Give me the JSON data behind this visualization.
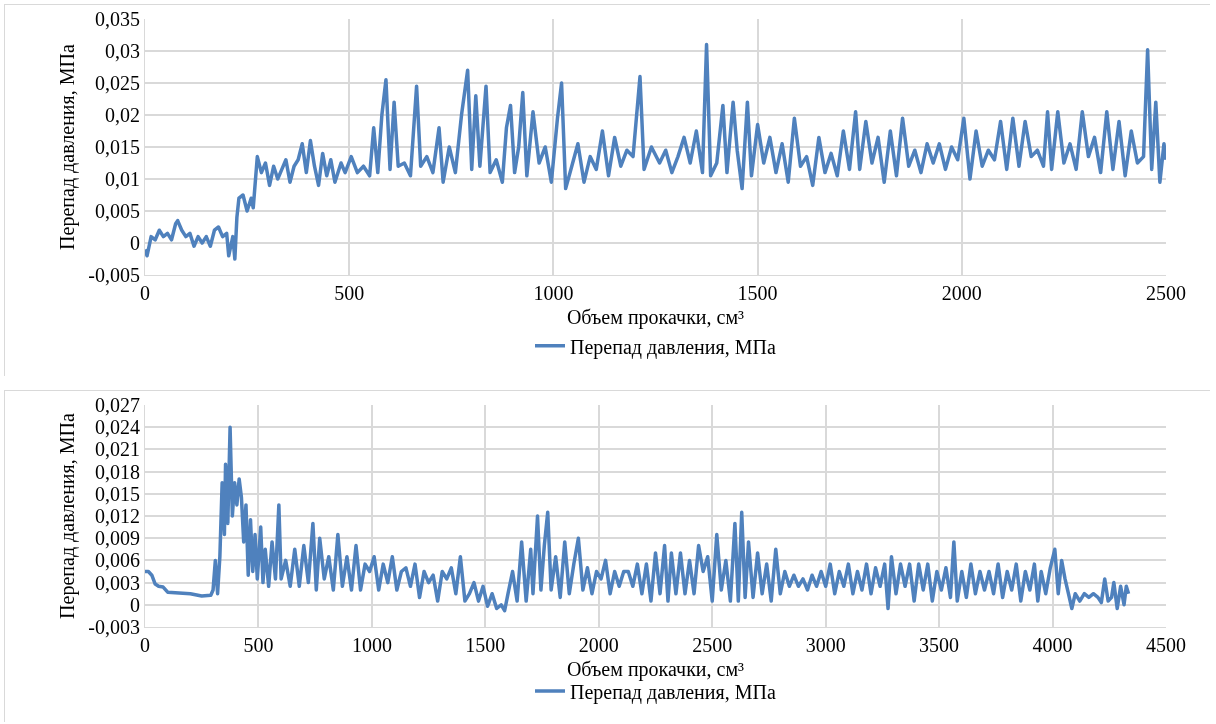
{
  "chart_data": [
    {
      "type": "line",
      "xlabel": "Объем прокачки, см³",
      "ylabel": "Перепад давления, МПа",
      "grid": true,
      "legend": "bottom",
      "marker": "none",
      "line_style": "solid",
      "xlim": [
        0,
        2500
      ],
      "xticks": [
        0,
        500,
        1000,
        1500,
        2000,
        2500
      ],
      "ylim": [
        -0.005,
        0.035
      ],
      "yticks": [
        {
          "value": -0.005,
          "label": "-0,005"
        },
        0,
        {
          "value": 0.005,
          "label": "0,005"
        },
        {
          "value": 0.01,
          "label": "0,01"
        },
        {
          "value": 0.015,
          "label": "0,015"
        },
        {
          "value": 0.02,
          "label": "0,02"
        },
        {
          "value": 0.025,
          "label": "0,025"
        },
        {
          "value": 0.03,
          "label": "0,03"
        },
        {
          "value": 0.035,
          "label": "0,035"
        }
      ],
      "series": [
        {
          "name": "Перепад давления, МПа",
          "color": "#4f81bd",
          "x": [
            0,
            5,
            15,
            25,
            35,
            45,
            55,
            65,
            75,
            80,
            90,
            100,
            110,
            120,
            130,
            140,
            150,
            160,
            170,
            180,
            190,
            200,
            205,
            215,
            220,
            225,
            230,
            240,
            250,
            260,
            265,
            275,
            285,
            295,
            305,
            315,
            325,
            335,
            345,
            355,
            365,
            375,
            385,
            395,
            405,
            415,
            425,
            435,
            445,
            455,
            465,
            480,
            490,
            505,
            520,
            535,
            550,
            560,
            570,
            580,
            590,
            600,
            610,
            620,
            635,
            650,
            665,
            675,
            690,
            705,
            720,
            730,
            745,
            760,
            775,
            790,
            800,
            810,
            820,
            835,
            845,
            860,
            875,
            885,
            895,
            905,
            915,
            925,
            935,
            950,
            965,
            980,
            995,
            1010,
            1020,
            1030,
            1045,
            1060,
            1075,
            1090,
            1105,
            1120,
            1135,
            1150,
            1165,
            1180,
            1195,
            1212,
            1222,
            1240,
            1260,
            1275,
            1290,
            1305,
            1320,
            1335,
            1350,
            1365,
            1375,
            1385,
            1400,
            1415,
            1425,
            1440,
            1450,
            1462,
            1475,
            1485,
            1500,
            1515,
            1530,
            1545,
            1560,
            1575,
            1590,
            1605,
            1620,
            1635,
            1650,
            1665,
            1680,
            1695,
            1710,
            1725,
            1740,
            1750,
            1765,
            1780,
            1795,
            1810,
            1825,
            1840,
            1855,
            1870,
            1885,
            1900,
            1915,
            1930,
            1945,
            1960,
            1975,
            1990,
            2005,
            2020,
            2035,
            2050,
            2065,
            2080,
            2095,
            2110,
            2125,
            2140,
            2155,
            2170,
            2185,
            2200,
            2210,
            2220,
            2235,
            2250,
            2265,
            2280,
            2295,
            2310,
            2325,
            2340,
            2355,
            2370,
            2385,
            2400,
            2415,
            2430,
            2445,
            2455,
            2465,
            2475,
            2485,
            2495,
            2500
          ],
          "values": [
            -0.001,
            -0.002,
            0.001,
            0.0005,
            0.002,
            0.001,
            0.0015,
            0.0005,
            0.003,
            0.0035,
            0.002,
            0.001,
            0.0015,
            -0.0005,
            0.001,
            0,
            0.001,
            -0.0005,
            0.002,
            0.0025,
            0.001,
            0.0015,
            -0.002,
            0.001,
            -0.0025,
            0.004,
            0.007,
            0.0075,
            0.005,
            0.007,
            0.0055,
            0.0135,
            0.011,
            0.0125,
            0.009,
            0.012,
            0.01,
            0.0115,
            0.013,
            0.0095,
            0.012,
            0.013,
            0.0155,
            0.011,
            0.016,
            0.012,
            0.009,
            0.014,
            0.0105,
            0.013,
            0.0095,
            0.0125,
            0.011,
            0.0135,
            0.011,
            0.012,
            0.0105,
            0.018,
            0.011,
            0.02,
            0.0255,
            0.0115,
            0.022,
            0.012,
            0.0125,
            0.0105,
            0.0245,
            0.012,
            0.0135,
            0.011,
            0.018,
            0.0095,
            0.015,
            0.011,
            0.02,
            0.027,
            0.0115,
            0.023,
            0.012,
            0.0245,
            0.011,
            0.013,
            0.0095,
            0.018,
            0.0215,
            0.011,
            0.015,
            0.0235,
            0.0105,
            0.0205,
            0.0125,
            0.015,
            0.0095,
            0.0195,
            0.025,
            0.0085,
            0.012,
            0.0155,
            0.0095,
            0.0135,
            0.0115,
            0.0175,
            0.0105,
            0.0165,
            0.012,
            0.0145,
            0.0135,
            0.026,
            0.0115,
            0.015,
            0.0125,
            0.0145,
            0.011,
            0.0135,
            0.0165,
            0.0125,
            0.0175,
            0.011,
            0.031,
            0.0105,
            0.0125,
            0.0215,
            0.011,
            0.022,
            0.0145,
            0.0085,
            0.022,
            0.0105,
            0.0185,
            0.0125,
            0.0165,
            0.011,
            0.0155,
            0.0095,
            0.0195,
            0.012,
            0.0135,
            0.009,
            0.0165,
            0.011,
            0.014,
            0.0105,
            0.0175,
            0.0115,
            0.0205,
            0.0115,
            0.019,
            0.0125,
            0.0165,
            0.0095,
            0.0175,
            0.0105,
            0.0195,
            0.012,
            0.0145,
            0.011,
            0.0155,
            0.0125,
            0.0155,
            0.0115,
            0.015,
            0.013,
            0.0195,
            0.01,
            0.0175,
            0.012,
            0.0145,
            0.013,
            0.019,
            0.0115,
            0.0195,
            0.012,
            0.019,
            0.0135,
            0.0145,
            0.012,
            0.0205,
            0.0115,
            0.0205,
            0.0125,
            0.0155,
            0.0115,
            0.0205,
            0.0135,
            0.0165,
            0.011,
            0.0205,
            0.0115,
            0.019,
            0.0105,
            0.0175,
            0.0125,
            0.0135,
            0.0302,
            0.0115,
            0.022,
            0.0095,
            0.0155,
            0.013
          ]
        }
      ]
    },
    {
      "type": "line",
      "xlabel": "Объем прокачки, см³",
      "ylabel": "Перепад давления, МПа",
      "grid": true,
      "legend": "bottom",
      "marker": "none",
      "line_style": "solid",
      "xlim": [
        0,
        4500
      ],
      "xticks": [
        0,
        500,
        1000,
        1500,
        2000,
        2500,
        3000,
        3500,
        4000,
        4500
      ],
      "ylim": [
        -0.003,
        0.027
      ],
      "yticks": [
        {
          "value": -0.003,
          "label": "-0,003"
        },
        0,
        {
          "value": 0.003,
          "label": "0,003"
        },
        {
          "value": 0.006,
          "label": "0,006"
        },
        {
          "value": 0.009,
          "label": "0,009"
        },
        {
          "value": 0.012,
          "label": "0,012"
        },
        {
          "value": 0.015,
          "label": "0,015"
        },
        {
          "value": 0.018,
          "label": "0,018"
        },
        {
          "value": 0.021,
          "label": "0,021"
        },
        {
          "value": 0.024,
          "label": "0,024"
        },
        {
          "value": 0.027,
          "label": "0,027"
        }
      ],
      "series": [
        {
          "name": "Перепад давления, МПа",
          "color": "#4f81bd",
          "x": [
            0,
            15,
            30,
            45,
            60,
            80,
            100,
            150,
            200,
            250,
            290,
            300,
            310,
            320,
            330,
            340,
            350,
            355,
            365,
            375,
            385,
            395,
            405,
            415,
            425,
            435,
            445,
            455,
            465,
            475,
            485,
            495,
            510,
            520,
            530,
            545,
            560,
            575,
            590,
            600,
            620,
            640,
            660,
            680,
            700,
            720,
            740,
            755,
            770,
            790,
            810,
            830,
            850,
            870,
            890,
            910,
            930,
            950,
            970,
            990,
            1010,
            1030,
            1050,
            1070,
            1090,
            1110,
            1130,
            1150,
            1170,
            1190,
            1210,
            1230,
            1250,
            1270,
            1290,
            1310,
            1330,
            1350,
            1370,
            1390,
            1410,
            1430,
            1450,
            1470,
            1490,
            1510,
            1530,
            1550,
            1570,
            1585,
            1600,
            1620,
            1640,
            1660,
            1680,
            1700,
            1710,
            1730,
            1745,
            1760,
            1775,
            1790,
            1810,
            1830,
            1850,
            1870,
            1890,
            1910,
            1930,
            1950,
            1970,
            1990,
            2010,
            2030,
            2050,
            2070,
            2090,
            2110,
            2130,
            2150,
            2170,
            2190,
            2210,
            2230,
            2250,
            2270,
            2290,
            2305,
            2320,
            2340,
            2360,
            2380,
            2400,
            2420,
            2440,
            2460,
            2480,
            2500,
            2520,
            2540,
            2560,
            2580,
            2600,
            2615,
            2630,
            2645,
            2660,
            2680,
            2700,
            2720,
            2740,
            2760,
            2780,
            2800,
            2820,
            2840,
            2860,
            2880,
            2900,
            2920,
            2940,
            2960,
            2980,
            3000,
            3020,
            3040,
            3060,
            3080,
            3100,
            3120,
            3140,
            3160,
            3180,
            3200,
            3220,
            3240,
            3260,
            3275,
            3290,
            3310,
            3330,
            3350,
            3370,
            3390,
            3410,
            3430,
            3450,
            3470,
            3490,
            3510,
            3530,
            3550,
            3565,
            3580,
            3600,
            3620,
            3640,
            3660,
            3680,
            3700,
            3720,
            3740,
            3760,
            3780,
            3800,
            3820,
            3840,
            3860,
            3880,
            3900,
            3920,
            3935,
            3950,
            3970,
            3990,
            4010,
            4025,
            4040,
            4055,
            4070,
            4085,
            4100,
            4120,
            4140,
            4160,
            4180,
            4200,
            4215,
            4230,
            4245,
            4260,
            4270,
            4285,
            4300,
            4315,
            4325,
            4335
          ],
          "values": [
            0.0045,
            0.0045,
            0.004,
            0.0028,
            0.0025,
            0.0024,
            0.0017,
            0.0016,
            0.0015,
            0.0012,
            0.0013,
            0.002,
            0.006,
            0.0015,
            0.0065,
            0.0165,
            0.0095,
            0.019,
            0.011,
            0.024,
            0.012,
            0.0165,
            0.0135,
            0.017,
            0.0145,
            0.0085,
            0.0135,
            0.004,
            0.0115,
            0.0045,
            0.0095,
            0.0035,
            0.0105,
            0.003,
            0.0075,
            0.0025,
            0.0085,
            0.0035,
            0.0135,
            0.0035,
            0.006,
            0.0025,
            0.0075,
            0.0025,
            0.008,
            0.003,
            0.011,
            0.002,
            0.009,
            0.0035,
            0.0065,
            0.002,
            0.0095,
            0.0025,
            0.0065,
            0.002,
            0.008,
            0.002,
            0.0055,
            0.0045,
            0.0065,
            0.002,
            0.0055,
            0.003,
            0.0065,
            0.002,
            0.0045,
            0.005,
            0.0025,
            0.0055,
            0.001,
            0.0045,
            0.003,
            0.004,
            0.0005,
            0.0045,
            0.0035,
            0.005,
            0.0015,
            0.0065,
            0.0005,
            0.0015,
            0.003,
            0.0005,
            0.0025,
            -0.0002,
            0.0015,
            -0.0005,
            0,
            -0.0008,
            0.0015,
            0.0045,
            0.0005,
            0.0085,
            0.0005,
            0.0075,
            0.0015,
            0.012,
            0.002,
            0.008,
            0.0125,
            0.002,
            0.0065,
            0.001,
            0.0085,
            0.0015,
            0.0055,
            0.009,
            0.002,
            0.005,
            0.0015,
            0.0045,
            0.0035,
            0.006,
            0.0015,
            0.0045,
            0.0025,
            0.0045,
            0.0045,
            0.0025,
            0.0055,
            0.0015,
            0.0055,
            0.0005,
            0.007,
            0.0015,
            0.008,
            0.0005,
            0.007,
            0.0015,
            0.007,
            0.0015,
            0.006,
            0.0015,
            0.008,
            0.0045,
            0.0065,
            0.0005,
            0.0095,
            0.002,
            0.006,
            0.0005,
            0.011,
            0.0005,
            0.0125,
            0.001,
            0.0085,
            0.001,
            0.007,
            0.0015,
            0.0055,
            0.0005,
            0.0075,
            0.0015,
            0.0045,
            0.0025,
            0.004,
            0.0025,
            0.0035,
            0.002,
            0.004,
            0.0025,
            0.0045,
            0.0025,
            0.0055,
            0.0015,
            0.0045,
            0.0025,
            0.0055,
            0.0015,
            0.0045,
            0.002,
            0.0055,
            0.0015,
            0.005,
            0.0025,
            0.0055,
            -0.0005,
            0.0065,
            0.0015,
            0.0055,
            0.0025,
            0.0055,
            0.0005,
            0.0055,
            0.002,
            0.0055,
            0.0005,
            0.0045,
            0.002,
            0.005,
            0.001,
            0.0085,
            0.0005,
            0.0045,
            0.001,
            0.0055,
            0.0015,
            0.0045,
            0.002,
            0.0045,
            0.0015,
            0.0055,
            0.001,
            0.0045,
            0.002,
            0.0055,
            0.0005,
            0.0045,
            0.002,
            0.0055,
            0.0005,
            0.0045,
            0.0015,
            0.005,
            0.0075,
            0.0015,
            0.006,
            0.0035,
            0.0015,
            -0.0005,
            0.0015,
            0.0005,
            0.0015,
            0.001,
            0.0015,
            0.001,
            0.0003,
            0.0035,
            0.0005,
            0.001,
            0.003,
            -0.0005,
            0.0025,
            0,
            0.0025,
            0.0015
          ]
        }
      ]
    }
  ]
}
